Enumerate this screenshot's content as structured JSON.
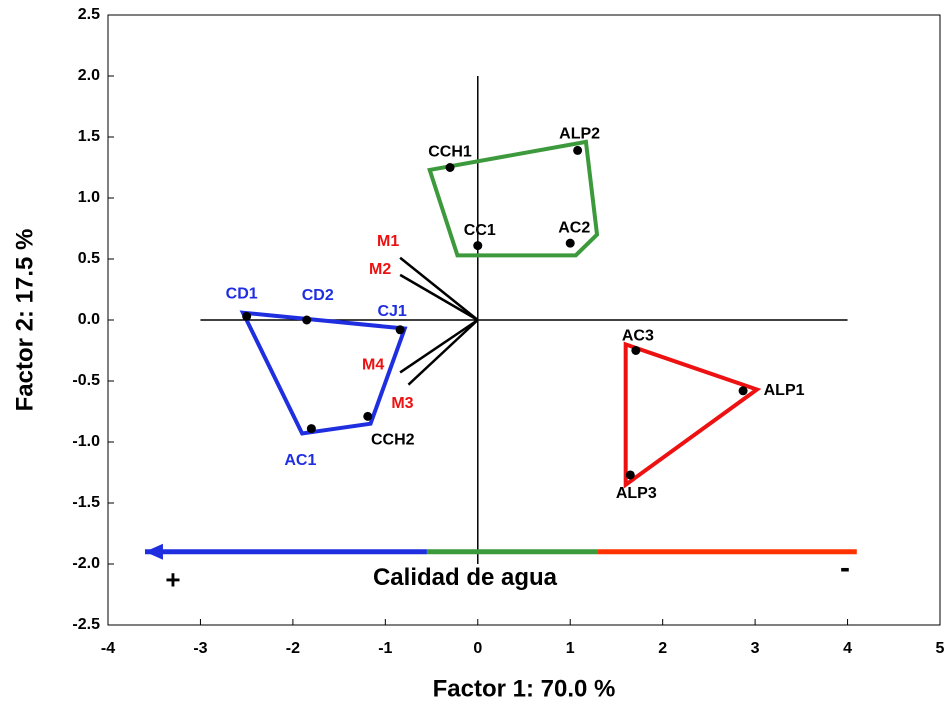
{
  "chart_data": {
    "type": "scatter",
    "xlabel": "Factor 1: 70.0 %",
    "ylabel": "Factor 2: 17.5 %",
    "xlim": [
      -4,
      5
    ],
    "ylim": [
      -2.5,
      2.5
    ],
    "xticks": [
      -4,
      -3,
      -2,
      -1,
      0,
      1,
      2,
      3,
      4,
      5
    ],
    "yticks": [
      -2.5,
      {
        "value": -2.0,
        "label": "-2.0"
      },
      -1.5,
      {
        "value": -1.0,
        "label": "-1.0"
      },
      -0.5,
      {
        "value": 0.0,
        "label": "0.0"
      },
      0.5,
      {
        "value": 1.0,
        "label": "1.0"
      },
      1.5,
      {
        "value": 2.0,
        "label": "2.0"
      },
      2.5
    ],
    "points": {
      "labels": [
        "CCH1",
        "ALP2",
        "CC1",
        "AC2",
        "CD1",
        "CD2",
        "CJ1",
        "AC1",
        "CCH2",
        "AC3",
        "ALP1",
        "ALP3"
      ],
      "x": [
        -0.3,
        1.08,
        0,
        1.0,
        -2.5,
        -1.85,
        -0.84,
        -1.8,
        -1.19,
        1.71,
        2.87,
        1.65
      ],
      "y": [
        1.25,
        1.39,
        0.61,
        0.63,
        0.03,
        0,
        -0.08,
        -0.89,
        -0.79,
        -0.25,
        -0.58,
        -1.27
      ],
      "label_colors": [
        "#000000",
        "#000000",
        "#000000",
        "#000000",
        "#1f2fe0",
        "#1f2fe0",
        "#1f2fe0",
        "#1f2fe0",
        "#000000",
        "#000000",
        "#000000",
        "#000000"
      ]
    },
    "groups": [
      {
        "color": "#3c9a3c",
        "x": [
          -0.52,
          1.17,
          1.29,
          1.06,
          -0.22
        ],
        "y": [
          1.23,
          1.46,
          0.7,
          0.53,
          0.53
        ]
      },
      {
        "color": "#1f2fe0",
        "x": [
          -2.54,
          -0.79,
          -1.16,
          -1.9
        ],
        "y": [
          0.06,
          -0.07,
          -0.85,
          -0.93
        ]
      },
      {
        "color": "#ee1111",
        "x": [
          1.6,
          1.6,
          3.02
        ],
        "y": [
          -0.2,
          -1.35,
          -0.57
        ]
      }
    ],
    "vectors": {
      "labels": [
        "M1",
        "M2",
        "M4",
        "M3"
      ],
      "x": [
        -0.84,
        -0.84,
        -0.84,
        -0.75
      ],
      "y": [
        0.51,
        0.37,
        -0.43,
        -0.53
      ],
      "color": "#ee1111"
    },
    "gradient_arrow": {
      "label": "Calidad de agua",
      "plus": "+",
      "minus": "-",
      "y": -1.9,
      "segments": [
        {
          "color": "#1f2fe0",
          "x": [
            -0.55,
            -3.6
          ]
        },
        {
          "color": "#3c9a3c",
          "x": [
            -0.55,
            1.3
          ]
        },
        {
          "color": "#ff3300",
          "x": [
            1.3,
            4.1
          ]
        }
      ]
    }
  }
}
